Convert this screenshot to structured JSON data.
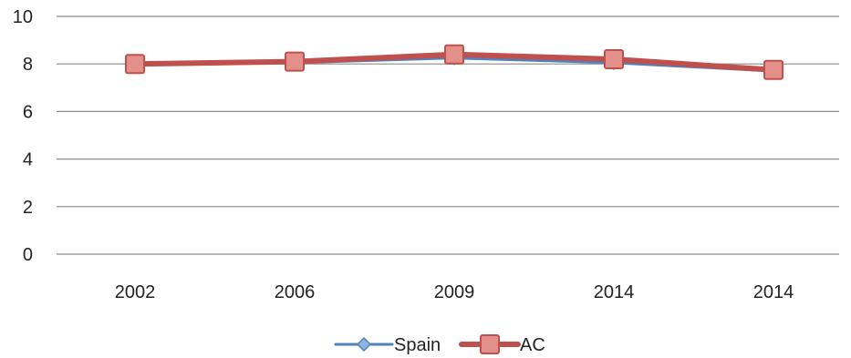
{
  "chart_data": {
    "type": "line",
    "categories": [
      "2002",
      "2006",
      "2009",
      "2014",
      "2014"
    ],
    "series": [
      {
        "name": "Spain",
        "values": [
          7.95,
          8.05,
          8.25,
          8.05,
          7.7
        ],
        "color": "#4F81BD",
        "marker": "diamond"
      },
      {
        "name": "AC",
        "values": [
          8.0,
          8.1,
          8.4,
          8.2,
          7.75
        ],
        "color": "#C0504D",
        "marker": "square"
      }
    ],
    "ylim": [
      0,
      10
    ],
    "yticks": [
      "0",
      "2",
      "4",
      "6",
      "8",
      "10"
    ],
    "grid": true,
    "legend": "bottom",
    "title": "",
    "xlabel": "",
    "ylabel": ""
  }
}
